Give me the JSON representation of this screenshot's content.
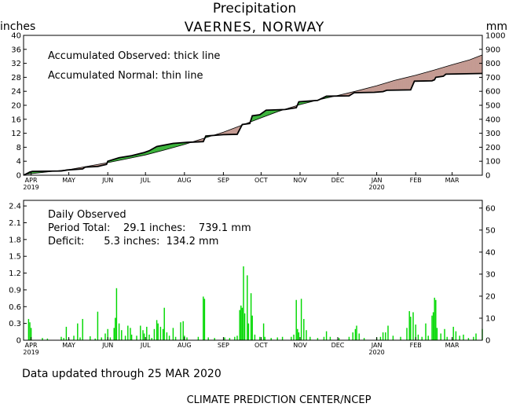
{
  "header": {
    "title": "Precipitation",
    "subtitle": "VAERNES, NORWAY",
    "left_unit": "inches",
    "right_unit": "mm"
  },
  "footer": {
    "updated": "Data updated through 25 MAR 2020",
    "credit": "CLIMATE PREDICTION CENTER/NCEP"
  },
  "colors": {
    "deficit_fill": "#c49a92",
    "surplus_fill": "#3cb43c",
    "bars": "#00d800",
    "axes": "#000000"
  },
  "chart_data": [
    {
      "type": "area",
      "legend": [
        "Accumulated Observed: thick line",
        "Accumulated Normal: thin line"
      ],
      "ylabel": "inches",
      "ylabel_right": "mm",
      "ylim": [
        0,
        40
      ],
      "ylim_right": [
        0,
        1000
      ],
      "yticks": [
        "0",
        "4",
        "8",
        "12",
        "16",
        "20",
        "24",
        "28",
        "32",
        "36",
        "40"
      ],
      "yticks_right": [
        "0",
        "100",
        "200",
        "300",
        "400",
        "500",
        "600",
        "700",
        "800",
        "900",
        "1000"
      ],
      "xticks": [
        "APR",
        "MAY",
        "JUN",
        "JUL",
        "AUG",
        "SEP",
        "OCT",
        "NOV",
        "DEC",
        "JAN",
        "FEB",
        "MAR"
      ],
      "xtick_years": [
        "2019",
        "2020"
      ],
      "x_start": "2019-03-26",
      "x_end": "2020-03-25",
      "normal": [
        [
          "2019-03-26",
          0.2
        ],
        [
          "2019-04-15",
          1.0
        ],
        [
          "2019-05-01",
          1.6
        ],
        [
          "2019-05-15",
          2.5
        ],
        [
          "2019-06-01",
          3.6
        ],
        [
          "2019-06-15",
          4.6
        ],
        [
          "2019-07-01",
          5.8
        ],
        [
          "2019-07-15",
          7.1
        ],
        [
          "2019-08-01",
          8.8
        ],
        [
          "2019-08-15",
          10.4
        ],
        [
          "2019-09-01",
          12.3
        ],
        [
          "2019-09-15",
          14.2
        ],
        [
          "2019-10-01",
          16.4
        ],
        [
          "2019-10-15",
          18.3
        ],
        [
          "2019-11-01",
          20.2
        ],
        [
          "2019-11-15",
          21.5
        ],
        [
          "2019-12-01",
          22.8
        ],
        [
          "2019-12-15",
          24.0
        ],
        [
          "2020-01-01",
          25.6
        ],
        [
          "2020-01-15",
          27.1
        ],
        [
          "2020-02-01",
          28.6
        ],
        [
          "2020-02-15",
          30.0
        ],
        [
          "2020-03-01",
          31.6
        ],
        [
          "2020-03-15",
          33.0
        ],
        [
          "2020-03-25",
          34.4
        ]
      ],
      "observed": [
        [
          "2019-03-26",
          0.0
        ],
        [
          "2019-03-31",
          0.9
        ],
        [
          "2019-04-02",
          1.1
        ],
        [
          "2019-04-25",
          1.2
        ],
        [
          "2019-04-30",
          1.5
        ],
        [
          "2019-05-12",
          1.8
        ],
        [
          "2019-05-14",
          2.3
        ],
        [
          "2019-05-24",
          2.5
        ],
        [
          "2019-05-31",
          3.1
        ],
        [
          "2019-06-01",
          4.0
        ],
        [
          "2019-06-10",
          5.0
        ],
        [
          "2019-06-20",
          5.6
        ],
        [
          "2019-06-30",
          6.5
        ],
        [
          "2019-07-04",
          7.0
        ],
        [
          "2019-07-10",
          8.2
        ],
        [
          "2019-07-23",
          9.1
        ],
        [
          "2019-08-03",
          9.4
        ],
        [
          "2019-08-16",
          9.6
        ],
        [
          "2019-08-18",
          11.2
        ],
        [
          "2019-09-01",
          11.6
        ],
        [
          "2019-09-12",
          11.7
        ],
        [
          "2019-09-16",
          14.5
        ],
        [
          "2019-09-22",
          14.8
        ],
        [
          "2019-09-24",
          17.0
        ],
        [
          "2019-09-30",
          17.3
        ],
        [
          "2019-10-05",
          18.6
        ],
        [
          "2019-10-20",
          18.8
        ],
        [
          "2019-10-29",
          19.3
        ],
        [
          "2019-10-31",
          21.0
        ],
        [
          "2019-11-15",
          21.4
        ],
        [
          "2019-11-22",
          22.6
        ],
        [
          "2019-12-10",
          22.7
        ],
        [
          "2019-12-14",
          23.6
        ],
        [
          "2019-12-30",
          23.7
        ],
        [
          "2020-01-06",
          23.9
        ],
        [
          "2020-01-09",
          24.3
        ],
        [
          "2020-01-28",
          24.4
        ],
        [
          "2020-01-31",
          26.9
        ],
        [
          "2020-02-14",
          27.0
        ],
        [
          "2020-02-16",
          27.3
        ],
        [
          "2020-02-17",
          28.0
        ],
        [
          "2020-02-23",
          28.3
        ],
        [
          "2020-02-25",
          28.9
        ],
        [
          "2020-03-25",
          29.1
        ]
      ]
    },
    {
      "type": "bar",
      "title": "Daily Observed",
      "stats": {
        "period_total": "Period Total:    29.1 inches:    739.1 mm",
        "deficit": "Deficit:      5.3 inches:  134.2 mm"
      },
      "ylabel": "inches",
      "ylabel_right": "mm",
      "ylim": [
        0,
        2.5
      ],
      "ylim_right": [
        0,
        63.5
      ],
      "yticks": [
        "0",
        "0.3",
        "0.6",
        "0.9",
        "1.2",
        "1.5",
        "1.8",
        "2.1",
        "2.4"
      ],
      "yticks_right": [
        "0",
        "10",
        "20",
        "30",
        "40",
        "50",
        "60"
      ],
      "xticks": [
        "APR",
        "MAY",
        "JUN",
        "JUL",
        "AUG",
        "SEP",
        "OCT",
        "NOV",
        "DEC",
        "JAN",
        "FEB",
        "MAR"
      ],
      "xtick_years": [
        "2019",
        "2020"
      ],
      "bars": [
        [
          "2019-03-30",
          0.38
        ],
        [
          "2019-03-31",
          0.32
        ],
        [
          "2019-04-01",
          0.22
        ],
        [
          "2019-04-10",
          0.04
        ],
        [
          "2019-04-14",
          0.03
        ],
        [
          "2019-04-25",
          0.06
        ],
        [
          "2019-04-27",
          0.04
        ],
        [
          "2019-04-29",
          0.24
        ],
        [
          "2019-05-01",
          0.03
        ],
        [
          "2019-05-05",
          0.08
        ],
        [
          "2019-05-08",
          0.3
        ],
        [
          "2019-05-10",
          0.05
        ],
        [
          "2019-05-12",
          0.38
        ],
        [
          "2019-05-18",
          0.07
        ],
        [
          "2019-05-22",
          0.03
        ],
        [
          "2019-05-24",
          0.51
        ],
        [
          "2019-05-27",
          0.05
        ],
        [
          "2019-05-30",
          0.12
        ],
        [
          "2019-06-01",
          0.2
        ],
        [
          "2019-06-03",
          0.05
        ],
        [
          "2019-06-06",
          0.22
        ],
        [
          "2019-06-07",
          0.4
        ],
        [
          "2019-06-08",
          0.93
        ],
        [
          "2019-06-10",
          0.3
        ],
        [
          "2019-06-12",
          0.18
        ],
        [
          "2019-06-15",
          0.08
        ],
        [
          "2019-06-17",
          0.26
        ],
        [
          "2019-06-19",
          0.22
        ],
        [
          "2019-06-20",
          0.1
        ],
        [
          "2019-06-24",
          0.08
        ],
        [
          "2019-06-27",
          0.26
        ],
        [
          "2019-06-29",
          0.18
        ],
        [
          "2019-06-30",
          0.12
        ],
        [
          "2019-07-02",
          0.24
        ],
        [
          "2019-07-04",
          0.1
        ],
        [
          "2019-07-06",
          0.04
        ],
        [
          "2019-07-08",
          0.2
        ],
        [
          "2019-07-10",
          0.36
        ],
        [
          "2019-07-11",
          0.3
        ],
        [
          "2019-07-13",
          0.24
        ],
        [
          "2019-07-15",
          0.2
        ],
        [
          "2019-07-16",
          0.58
        ],
        [
          "2019-07-18",
          0.14
        ],
        [
          "2019-07-20",
          0.08
        ],
        [
          "2019-07-23",
          0.22
        ],
        [
          "2019-07-25",
          0.06
        ],
        [
          "2019-07-29",
          0.32
        ],
        [
          "2019-07-31",
          0.34
        ],
        [
          "2019-08-01",
          0.08
        ],
        [
          "2019-08-03",
          0.05
        ],
        [
          "2019-08-12",
          0.06
        ],
        [
          "2019-08-16",
          0.78
        ],
        [
          "2019-08-17",
          0.74
        ],
        [
          "2019-08-20",
          0.05
        ],
        [
          "2019-08-25",
          0.04
        ],
        [
          "2019-09-02",
          0.05
        ],
        [
          "2019-09-06",
          0.04
        ],
        [
          "2019-09-10",
          0.06
        ],
        [
          "2019-09-12",
          0.08
        ],
        [
          "2019-09-14",
          0.54
        ],
        [
          "2019-09-15",
          0.62
        ],
        [
          "2019-09-16",
          0.58
        ],
        [
          "2019-09-17",
          1.32
        ],
        [
          "2019-09-18",
          0.48
        ],
        [
          "2019-09-20",
          1.16
        ],
        [
          "2019-09-21",
          0.3
        ],
        [
          "2019-09-23",
          0.84
        ],
        [
          "2019-09-24",
          0.44
        ],
        [
          "2019-09-26",
          0.1
        ],
        [
          "2019-09-30",
          0.06
        ],
        [
          "2019-10-03",
          0.3
        ],
        [
          "2019-10-04",
          0.06
        ],
        [
          "2019-10-09",
          0.04
        ],
        [
          "2019-10-14",
          0.05
        ],
        [
          "2019-10-18",
          0.06
        ],
        [
          "2019-10-25",
          0.06
        ],
        [
          "2019-10-27",
          0.1
        ],
        [
          "2019-10-29",
          0.72
        ],
        [
          "2019-10-30",
          0.2
        ],
        [
          "2019-10-31",
          0.14
        ],
        [
          "2019-11-02",
          0.74
        ],
        [
          "2019-11-04",
          0.38
        ],
        [
          "2019-11-06",
          0.18
        ],
        [
          "2019-11-09",
          0.06
        ],
        [
          "2019-11-15",
          0.04
        ],
        [
          "2019-11-20",
          0.06
        ],
        [
          "2019-11-22",
          0.16
        ],
        [
          "2019-11-25",
          0.06
        ],
        [
          "2019-12-02",
          0.04
        ],
        [
          "2019-12-10",
          0.06
        ],
        [
          "2019-12-13",
          0.14
        ],
        [
          "2019-12-15",
          0.2
        ],
        [
          "2019-12-16",
          0.26
        ],
        [
          "2019-12-18",
          0.12
        ],
        [
          "2019-12-22",
          0.04
        ],
        [
          "2020-01-01",
          0.05
        ],
        [
          "2020-01-04",
          0.06
        ],
        [
          "2020-01-06",
          0.14
        ],
        [
          "2020-01-08",
          0.14
        ],
        [
          "2020-01-10",
          0.26
        ],
        [
          "2020-01-14",
          0.08
        ],
        [
          "2020-01-20",
          0.06
        ],
        [
          "2020-01-25",
          0.22
        ],
        [
          "2020-01-27",
          0.52
        ],
        [
          "2020-01-28",
          0.42
        ],
        [
          "2020-01-30",
          0.5
        ],
        [
          "2020-02-01",
          0.28
        ],
        [
          "2020-02-03",
          0.1
        ],
        [
          "2020-02-06",
          0.06
        ],
        [
          "2020-02-09",
          0.3
        ],
        [
          "2020-02-11",
          0.08
        ],
        [
          "2020-02-14",
          0.44
        ],
        [
          "2020-02-15",
          0.5
        ],
        [
          "2020-02-16",
          0.76
        ],
        [
          "2020-02-17",
          0.72
        ],
        [
          "2020-02-18",
          0.22
        ],
        [
          "2020-02-21",
          0.12
        ],
        [
          "2020-02-24",
          0.2
        ],
        [
          "2020-02-26",
          0.06
        ],
        [
          "2020-03-02",
          0.24
        ],
        [
          "2020-03-04",
          0.16
        ],
        [
          "2020-03-07",
          0.08
        ],
        [
          "2020-03-10",
          0.1
        ],
        [
          "2020-03-14",
          0.04
        ],
        [
          "2020-03-18",
          0.06
        ],
        [
          "2020-03-20",
          0.12
        ],
        [
          "2020-03-25",
          0.2
        ]
      ]
    }
  ]
}
